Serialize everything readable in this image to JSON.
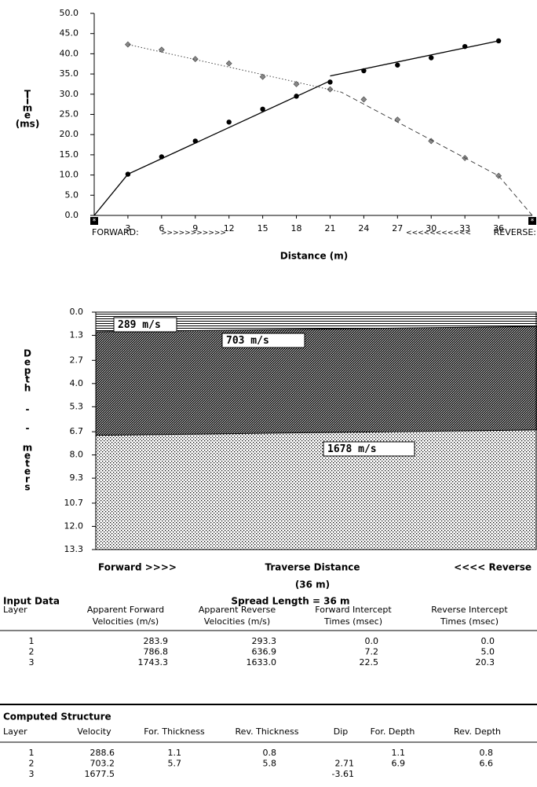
{
  "chart_data": [
    {
      "type": "line",
      "ylabel_letters": [
        "T",
        "i",
        "m",
        "e",
        "(ms)"
      ],
      "xlabel": "Distance (m)",
      "forward_label": "FORWARD:",
      "forward_arrows": ">>>>>>>>>>>",
      "reverse_arrows": "<<<<<<<<<<<",
      "reverse_label": "REVERSE:",
      "xlim": [
        0,
        39
      ],
      "xticks": [
        3,
        6,
        9,
        12,
        15,
        18,
        21,
        24,
        27,
        30,
        33,
        36
      ],
      "ylim": [
        0,
        50
      ],
      "yticks": [
        {
          "value": 0,
          "label": "0.0"
        },
        {
          "value": 5,
          "label": "5.0"
        },
        {
          "value": 10,
          "label": "10.0"
        },
        {
          "value": 15,
          "label": "15.0"
        },
        {
          "value": 20,
          "label": "20.0"
        },
        {
          "value": 25,
          "label": "25.0"
        },
        {
          "value": 30,
          "label": "30.0"
        },
        {
          "value": 35,
          "label": "35.0"
        },
        {
          "value": 40,
          "label": "40.0"
        },
        {
          "value": 45,
          "label": "45.0"
        },
        {
          "value": 50,
          "label": "50.0"
        }
      ],
      "grid": false,
      "series": [
        {
          "color": "#000000",
          "marker": "circle",
          "x": [
            3,
            6,
            9,
            12,
            15,
            18,
            21,
            24,
            27,
            30,
            33,
            36
          ],
          "values": [
            10.2,
            14.5,
            18.4,
            23.1,
            26.3,
            29.5,
            33.0,
            35.8,
            37.2,
            39.0,
            41.8,
            43.2
          ]
        },
        {
          "color": "#888888",
          "marker": "diamond",
          "x": [
            3,
            6,
            9,
            12,
            15,
            18,
            21,
            24,
            27,
            30,
            33,
            36
          ],
          "values": [
            42.3,
            41.0,
            38.7,
            37.6,
            34.3,
            32.5,
            31.2,
            28.7,
            23.7,
            18.4,
            14.2,
            9.8
          ]
        },
        {
          "color": "#000000",
          "dash": "solid",
          "x": [
            0,
            3,
            21,
            null,
            21,
            36
          ],
          "values": [
            0,
            10.2,
            33.3,
            null,
            34.5,
            43.2
          ]
        },
        {
          "color": "#444444",
          "dash": "dashed",
          "x": [
            39,
            36,
            22
          ],
          "values": [
            0,
            9.8,
            30.5
          ]
        },
        {
          "color": "#444444",
          "dash": "dotted",
          "x": [
            22,
            3
          ],
          "values": [
            30.5,
            42.3
          ]
        }
      ]
    },
    {
      "type": "area",
      "ylabel_letters": [
        "D",
        "e",
        "p",
        "t",
        "h",
        "-",
        "-",
        "m",
        "e",
        "t",
        "e",
        "r",
        "s"
      ],
      "xlabel": "Traverse Distance",
      "xlabel_sub": "(36 m)",
      "forward_label": "Forward >>>>",
      "reverse_label": "<<<< Reverse",
      "xlim": [
        0,
        36
      ],
      "ylim": [
        0,
        13.3
      ],
      "inverted": true,
      "yticks": [
        {
          "value": 0,
          "label": "0.0"
        },
        1.3,
        2.7,
        {
          "value": 4,
          "label": "4.0"
        },
        5.3,
        6.7,
        {
          "value": 8,
          "label": "8.0"
        },
        9.3,
        10.7,
        {
          "value": 12,
          "label": "12.0"
        },
        13.3
      ],
      "layer_labels": [
        "289 m/s",
        "703 m/s",
        "1678 m/s"
      ],
      "series": [
        {
          "x": [
            0,
            36
          ],
          "values": [
            1.1,
            0.8
          ]
        },
        {
          "x": [
            0,
            36
          ],
          "values": [
            6.9,
            6.6
          ]
        }
      ]
    }
  ],
  "input_data": {
    "title": "Input Data",
    "spread": "Spread Length = 36 m",
    "headers": [
      [
        "Layer"
      ],
      [
        "Apparent Forward",
        "Velocities (m/s)"
      ],
      [
        "Apparent Reverse",
        "Velocities (m/s)"
      ],
      [
        "Forward Intercept",
        "Times (msec)"
      ],
      [
        "Reverse Intercept",
        "Times (msec)"
      ]
    ],
    "rows": [
      [
        "1",
        "283.9",
        "293.3",
        "0.0",
        "0.0"
      ],
      [
        "2",
        "786.8",
        "636.9",
        "7.2",
        "5.0"
      ],
      [
        "3",
        "1743.3",
        "1633.0",
        "22.5",
        "20.3"
      ]
    ]
  },
  "computed_structure": {
    "title": "Computed Structure",
    "headers": [
      "Layer",
      "Velocity",
      "For. Thickness",
      "Rev. Thickness",
      "Dip",
      "For. Depth",
      "Rev. Depth"
    ],
    "rows": [
      [
        "1",
        "288.6",
        "1.1",
        "0.8",
        null,
        "1.1",
        "0.8"
      ],
      [
        "2",
        "703.2",
        "5.7",
        "5.8",
        "2.71",
        "6.9",
        "6.6"
      ],
      [
        "3",
        "1677.5",
        null,
        null,
        "-3.61",
        null,
        null
      ]
    ]
  }
}
